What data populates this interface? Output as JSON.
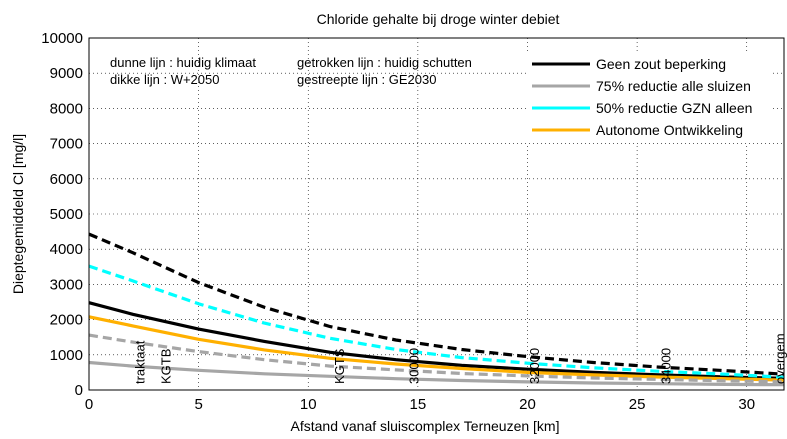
{
  "chart_data": {
    "type": "line",
    "title": "Chloride gehalte bij droge winter debiet",
    "xlabel": "Afstand vanaf sluiscomplex Terneuzen [km]",
    "ylabel": "Dieptegemiddeld Cl [mg/l]",
    "xlim": [
      0,
      31.7
    ],
    "ylim": [
      0,
      10000
    ],
    "xticks": [
      0,
      5,
      10,
      15,
      20,
      25,
      30
    ],
    "yticks": [
      0,
      1000,
      2000,
      3000,
      4000,
      5000,
      6000,
      7000,
      8000,
      9000,
      10000
    ],
    "grid": true,
    "notes": [
      "dunne lijn : huidig klimaat",
      "dikke lijn : W+2050",
      "getrokken lijn : huidig schutten",
      "gestreepte lijn : GE2030"
    ],
    "locations": [
      {
        "x": 2.3,
        "label": "traktaat"
      },
      {
        "x": 3.5,
        "label": "KGTB"
      },
      {
        "x": 11.4,
        "label": "KGTS"
      },
      {
        "x": 14.8,
        "label": "30000"
      },
      {
        "x": 20.3,
        "label": "32000"
      },
      {
        "x": 26.3,
        "label": "34000"
      },
      {
        "x": 31.5,
        "label": "overgem"
      }
    ],
    "legend": {
      "position": "top-right",
      "entries": [
        {
          "label": "Geen zout beperking",
          "color": "#000000"
        },
        {
          "label": "75% reductie alle sluizen",
          "color": "#a6a6a6"
        },
        {
          "label": "50% reductie GZN alleen",
          "color": "#00ffff"
        },
        {
          "label": "Autonome Ontwikkeling",
          "color": "#ffb000"
        }
      ]
    },
    "x": [
      0,
      2,
      5,
      8,
      11,
      14,
      17,
      20,
      23,
      26,
      29,
      31.7
    ],
    "series": [
      {
        "color": "#000000",
        "style": "solid",
        "weight": "thick",
        "values": [
          2480,
          2150,
          1730,
          1380,
          1070,
          860,
          700,
          590,
          500,
          430,
          370,
          330
        ]
      },
      {
        "color": "#a6a6a6",
        "style": "solid",
        "weight": "thick",
        "values": [
          780,
          680,
          560,
          460,
          390,
          320,
          270,
          230,
          200,
          180,
          160,
          150
        ]
      },
      {
        "color": "#ffb000",
        "style": "solid",
        "weight": "thick",
        "values": [
          2080,
          1820,
          1440,
          1140,
          900,
          740,
          610,
          500,
          430,
          370,
          320,
          280
        ]
      },
      {
        "color": "#000000",
        "style": "dashed",
        "weight": "thick",
        "values": [
          4430,
          3900,
          3050,
          2350,
          1800,
          1420,
          1150,
          950,
          780,
          650,
          550,
          450
        ]
      },
      {
        "color": "#00ffff",
        "style": "dashed",
        "weight": "thick",
        "values": [
          3520,
          3100,
          2450,
          1900,
          1470,
          1150,
          920,
          760,
          630,
          530,
          450,
          360
        ]
      },
      {
        "color": "#a6a6a6",
        "style": "dashed",
        "weight": "thick",
        "values": [
          1560,
          1360,
          1090,
          860,
          680,
          570,
          470,
          400,
          340,
          300,
          260,
          230
        ]
      }
    ]
  }
}
